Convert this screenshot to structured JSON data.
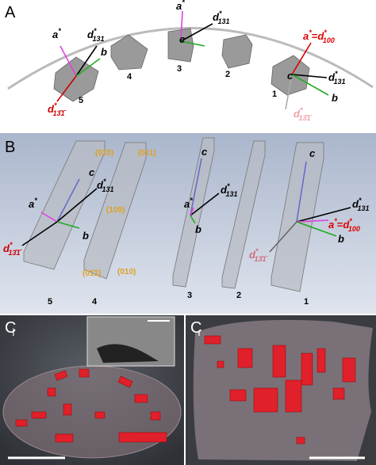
{
  "panel_a": {
    "label": "A",
    "crystal_numbers": [
      "5",
      "4",
      "3",
      "2",
      "1"
    ],
    "vectors": [
      {
        "base": "a",
        "sup": "*"
      },
      {
        "base": "d",
        "sup": "*",
        "sub": "131"
      },
      {
        "base": "b"
      },
      {
        "base": "d",
        "sup": "*",
        "sub": "13̄1̄"
      },
      {
        "base": "a",
        "sup": "*"
      },
      {
        "base": "d",
        "sup": "*",
        "sub": "131"
      },
      {
        "base": "c"
      },
      {
        "base": "a",
        "sup": "*",
        "eq": "=",
        "base2": "d",
        "sup2": "*",
        "sub2": "100"
      },
      {
        "base": "c"
      },
      {
        "base": "d",
        "sup": "*",
        "sub": "131"
      },
      {
        "base": "b"
      },
      {
        "base": "d",
        "sup": "*",
        "sub": "13̄1̄"
      }
    ]
  },
  "panel_b": {
    "label": "B",
    "slab_numbers": [
      "5",
      "4",
      "3",
      "2",
      "1"
    ],
    "faces": [
      "(01̄0)",
      "(011)",
      "(100)",
      "(01̄1̄)",
      "(010)"
    ],
    "vectors": [
      {
        "base": "c"
      },
      {
        "base": "d",
        "sup": "*",
        "sub": "131"
      },
      {
        "base": "a",
        "sup": "*"
      },
      {
        "base": "b"
      },
      {
        "base": "d",
        "sup": "*",
        "sub": "13̄1̄"
      },
      {
        "base": "c"
      },
      {
        "base": "d",
        "sup": "*",
        "sub": "131"
      },
      {
        "base": "a",
        "sup": "*"
      },
      {
        "base": "b"
      },
      {
        "base": "c"
      },
      {
        "base": "d",
        "sup": "*",
        "sub": "131"
      },
      {
        "base": "a",
        "sup": "*",
        "eq": "=",
        "base2": "d",
        "sup2": "*",
        "sub2": "100"
      },
      {
        "base": "b"
      },
      {
        "base": "d",
        "sup": "*",
        "sub": "13̄1̄"
      }
    ]
  },
  "panel_c": {
    "left_label": {
      "base": "C",
      "sub": "l"
    },
    "right_label": {
      "base": "C",
      "sub": "r"
    }
  }
}
